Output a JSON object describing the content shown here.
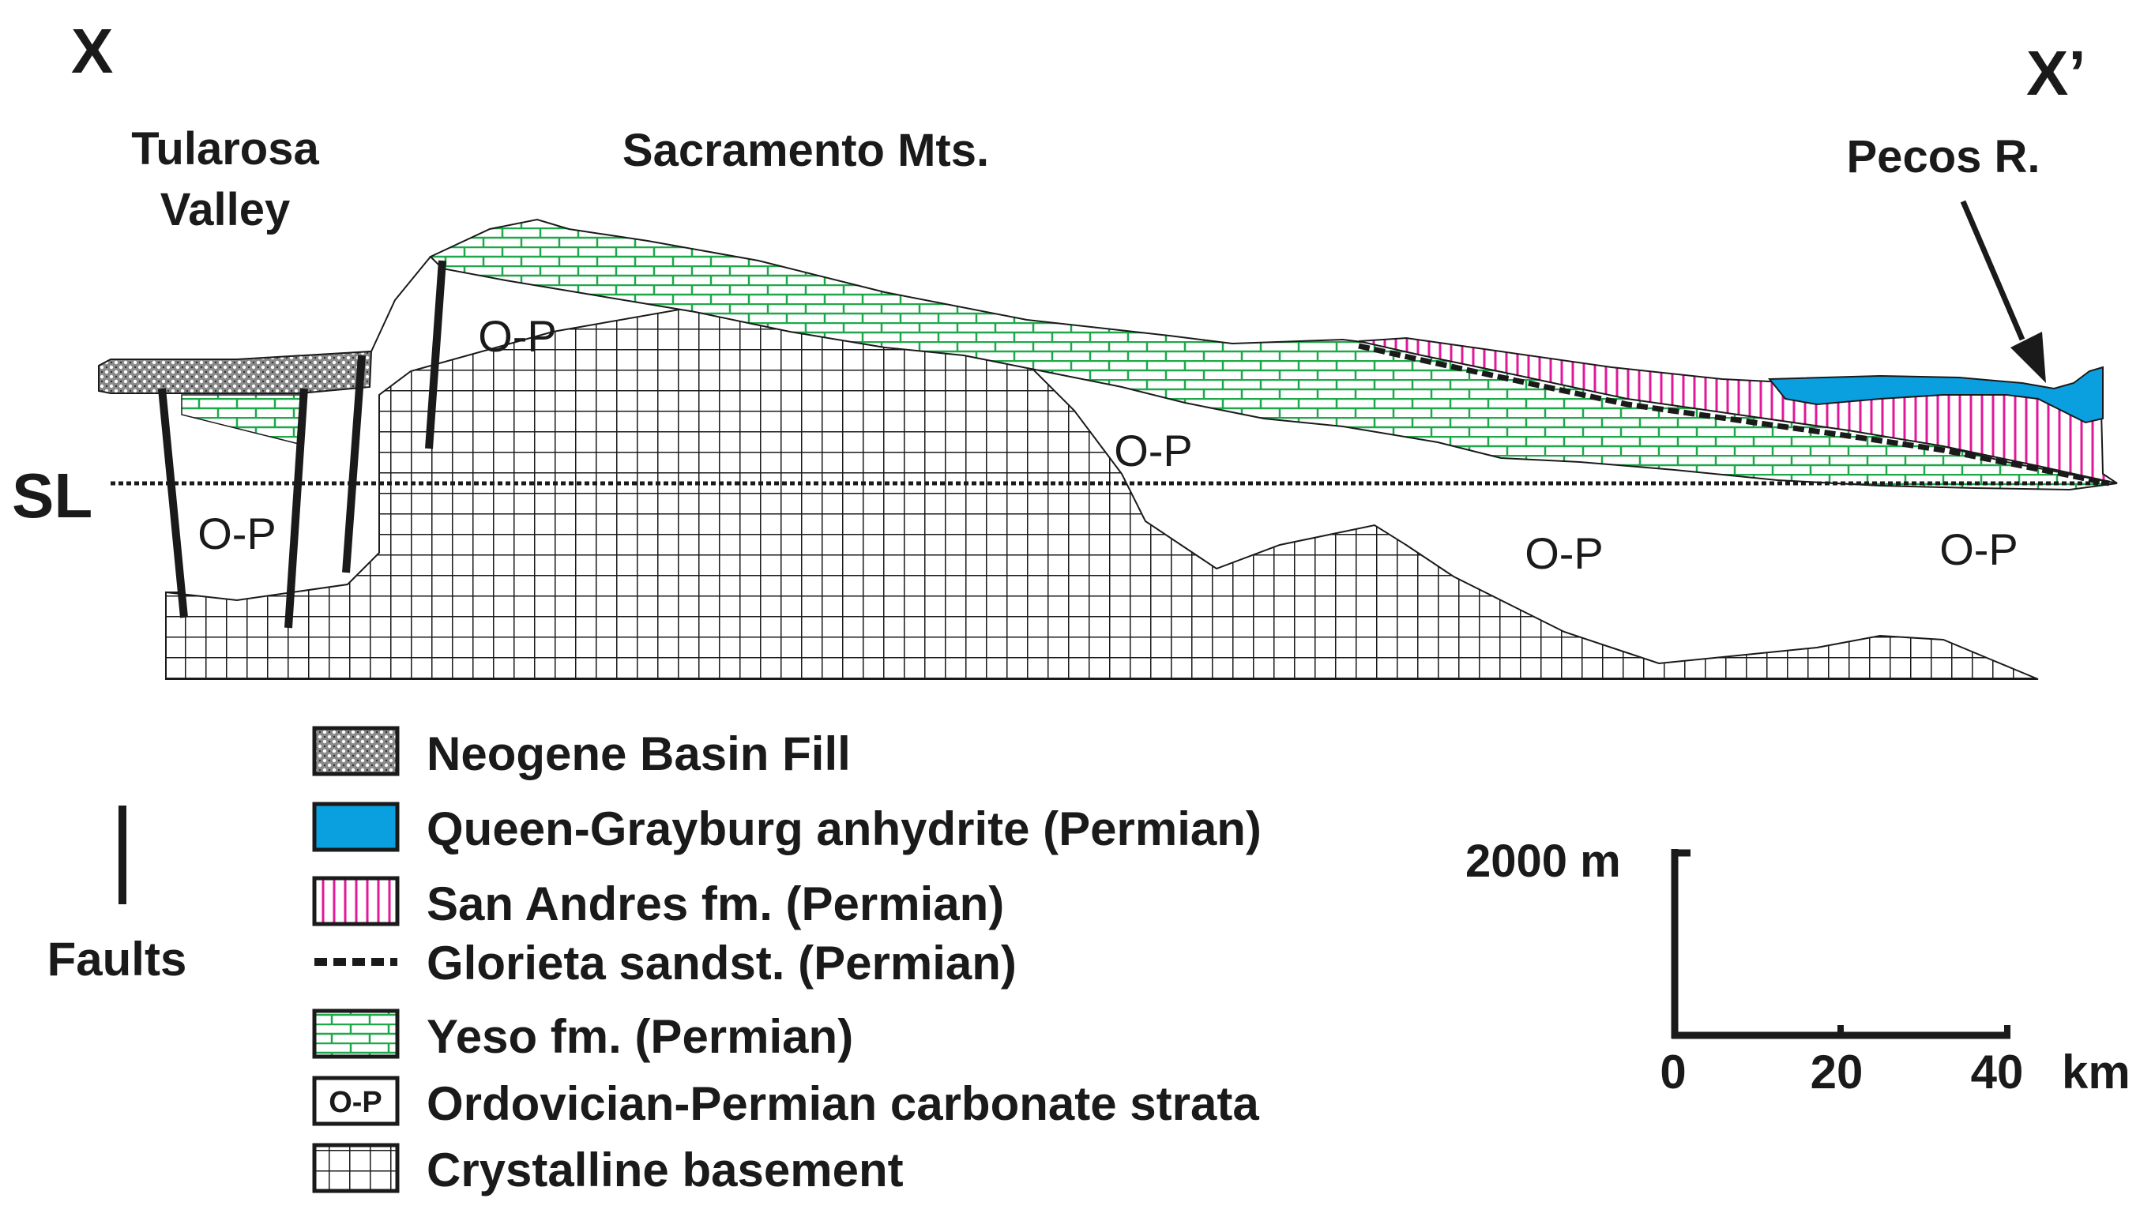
{
  "section": {
    "start_label": "X",
    "end_label": "X’",
    "sea_level_label": "SL",
    "places": {
      "tularosa_line1": "Tularosa",
      "tularosa_line2": "Valley",
      "sacramento": "Sacramento Mts.",
      "pecos": "Pecos R."
    },
    "unit_labels": [
      "O-P",
      "O-P",
      "O-P",
      "O-P",
      "O-P"
    ]
  },
  "legend": {
    "items": [
      {
        "id": "neogene",
        "label": "Neogene Basin Fill"
      },
      {
        "id": "queen",
        "label": "Queen-Grayburg anhydrite (Permian)"
      },
      {
        "id": "sanandres",
        "label": "San Andres fm. (Permian)"
      },
      {
        "id": "glorieta",
        "label": "Glorieta sandst. (Permian)"
      },
      {
        "id": "yeso",
        "label": "Yeso fm. (Permian)"
      },
      {
        "id": "op",
        "label": "Ordovician-Permian carbonate  strata",
        "swatch_text": "O-P"
      },
      {
        "id": "basement",
        "label": "Crystalline basement"
      }
    ],
    "faults_label": "Faults"
  },
  "scale": {
    "vertical_label": "2000 m",
    "ticks": [
      "0",
      "20",
      "40"
    ],
    "unit": "km"
  },
  "colors": {
    "queen_grayburg": "#0aa0e0",
    "san_andres": "#e0189a",
    "yeso": "#1fa84a",
    "ink": "#1a1a1a"
  }
}
